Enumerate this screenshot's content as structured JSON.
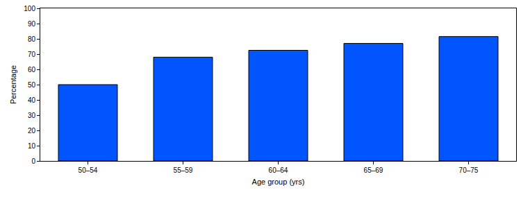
{
  "chart_data": {
    "type": "bar",
    "x_label": "Age group (yrs)",
    "y_label": "Percentage",
    "categories": [
      "50–54",
      "55–59",
      "60–64",
      "65–69",
      "70–75"
    ],
    "values": [
      50,
      68,
      72.5,
      77,
      81.5
    ],
    "color": "#0055ff",
    "ylim": [
      0,
      100
    ],
    "yticks": [
      0,
      10,
      20,
      30,
      40,
      50,
      60,
      70,
      80,
      90,
      100
    ],
    "grid": false
  }
}
